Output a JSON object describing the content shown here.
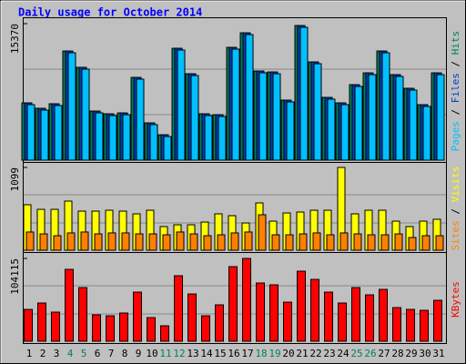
{
  "chart_data": [
    {
      "type": "bar",
      "title": "Daily usage for October 2014",
      "categories": [
        "1",
        "2",
        "3",
        "4",
        "5",
        "6",
        "7",
        "8",
        "9",
        "10",
        "11",
        "12",
        "13",
        "14",
        "15",
        "16",
        "17",
        "18",
        "19",
        "20",
        "21",
        "22",
        "23",
        "24",
        "25",
        "26",
        "27",
        "28",
        "29",
        "30",
        "31"
      ],
      "category_colors": [
        "#000000",
        "#000000",
        "#000000",
        "#00805c",
        "#00805c",
        "#000000",
        "#000000",
        "#000000",
        "#000000",
        "#000000",
        "#00805c",
        "#00805c",
        "#000000",
        "#000000",
        "#000000",
        "#000000",
        "#000000",
        "#00805c",
        "#00805c",
        "#000000",
        "#000000",
        "#000000",
        "#000000",
        "#000000",
        "#00805c",
        "#00805c",
        "#000000",
        "#000000",
        "#000000",
        "#000000",
        "#000000"
      ],
      "ylim": [
        0,
        15370
      ],
      "yticks": [
        15370
      ],
      "series": [
        {
          "name": "Pages",
          "color": "#00c0ff",
          "values": [
            6250,
            5640,
            6150,
            12090,
            10250,
            5330,
            5020,
            5120,
            9120,
            4000,
            2660,
            12400,
            9530,
            5020,
            4920,
            12500,
            14140,
            9840,
            9730,
            6560,
            14960,
            10860,
            6870,
            6250,
            8300,
            9630,
            12090,
            9430,
            7890,
            6050,
            9630
          ]
        },
        {
          "name": "Files",
          "color": "#0040c0",
          "values": [
            6450,
            5840,
            6350,
            12290,
            10450,
            5530,
            5220,
            5320,
            9320,
            4200,
            2860,
            12600,
            9730,
            5220,
            5120,
            12700,
            14340,
            10040,
            9930,
            6760,
            15160,
            11060,
            7070,
            6450,
            8500,
            9830,
            12290,
            9630,
            8090,
            6250,
            9830
          ]
        },
        {
          "name": "Hits",
          "color": "#00805c",
          "values": [
            6450,
            5840,
            6350,
            12290,
            10450,
            5530,
            5220,
            5320,
            9320,
            4200,
            2860,
            12600,
            9730,
            5220,
            5120,
            12700,
            14340,
            10040,
            9930,
            6760,
            15160,
            11060,
            7070,
            6450,
            8500,
            9830,
            12290,
            9630,
            8090,
            6250,
            9830
          ]
        }
      ]
    },
    {
      "type": "bar",
      "ylim": [
        0,
        1099
      ],
      "yticks": [
        1099
      ],
      "series": [
        {
          "name": "Sites",
          "color": "#ff8000",
          "values": [
            242,
            217,
            193,
            230,
            242,
            217,
            230,
            230,
            217,
            217,
            205,
            242,
            217,
            193,
            205,
            230,
            242,
            471,
            205,
            205,
            217,
            230,
            205,
            230,
            217,
            205,
            205,
            217,
            169,
            193,
            193
          ]
        },
        {
          "name": "Visits",
          "color": "#ffff00",
          "values": [
            604,
            543,
            543,
            652,
            519,
            519,
            531,
            519,
            483,
            531,
            314,
            338,
            338,
            374,
            483,
            459,
            362,
            628,
            386,
            495,
            507,
            531,
            531,
            1099,
            483,
            531,
            531,
            386,
            314,
            386,
            411
          ]
        }
      ]
    },
    {
      "type": "bar",
      "ylim": [
        0,
        104115
      ],
      "yticks": [
        104115
      ],
      "series": [
        {
          "name": "KBytes",
          "color": "#ff0000",
          "values": [
            40040,
            48050,
            36610,
            90380,
            67500,
            33180,
            32030,
            35460,
            61780,
            29740,
            19450,
            82370,
            59490,
            32030,
            45760,
            93810,
            104115,
            73220,
            70930,
            49190,
            88090,
            77790,
            61780,
            48050,
            67500,
            58340,
            65210,
            42330,
            40040,
            38900,
            51480
          ]
        }
      ]
    }
  ]
}
